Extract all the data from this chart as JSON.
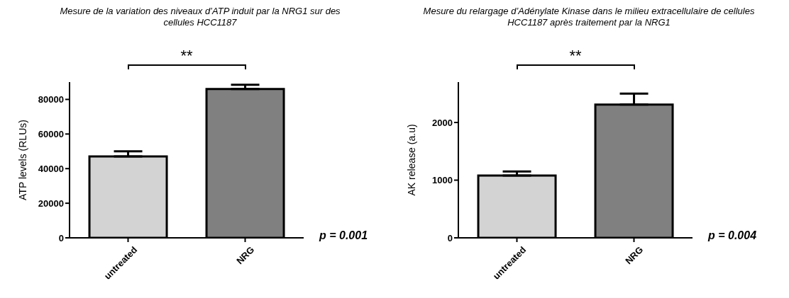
{
  "chart_data": [
    {
      "type": "bar",
      "title": "Mesure de la variation des niveaux d’ATP induit par la NRG1 sur des cellules HCC1187",
      "ylabel": "ATP levels (RLUs)",
      "categories": [
        "untreated",
        "NRG"
      ],
      "values": [
        47000,
        86000
      ],
      "errors": [
        3000,
        2500
      ],
      "colors": [
        "#d3d3d3",
        "#808080"
      ],
      "ylim": [
        0,
        90000
      ],
      "yticks": [
        0,
        20000,
        40000,
        60000,
        80000
      ],
      "annotations": [
        "**",
        "p = 0.001"
      ]
    },
    {
      "type": "bar",
      "title": "Mesure du relargage d’Adénylate Kinase dans le milieu extracellulaire de cellules HCC1187 après traitement par la NRG1",
      "ylabel": "AK release (a.u)",
      "categories": [
        "untreated",
        "NRG"
      ],
      "values": [
        1080,
        2310
      ],
      "errors": [
        70,
        190
      ],
      "colors": [
        "#d3d3d3",
        "#808080"
      ],
      "ylim": [
        0,
        2700
      ],
      "yticks": [
        0,
        1000,
        2000
      ],
      "annotations": [
        "**",
        "p = 0.004"
      ]
    }
  ]
}
